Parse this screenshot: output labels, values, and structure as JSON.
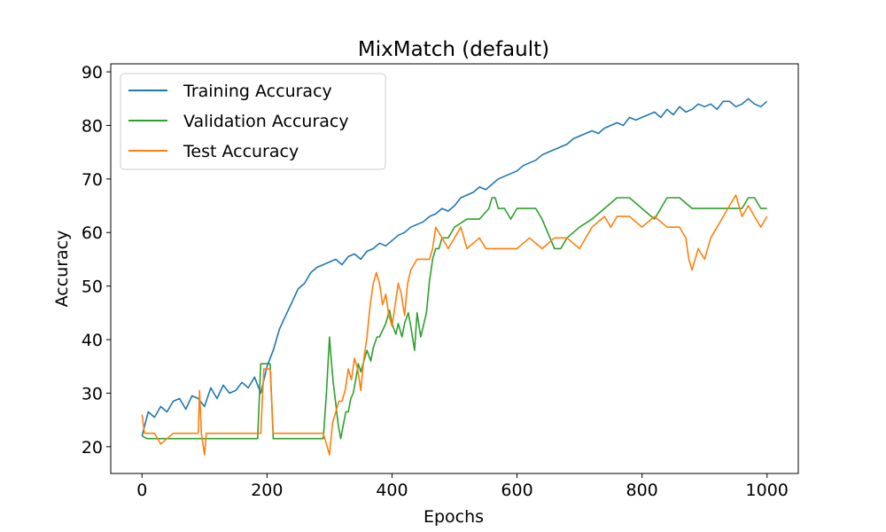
{
  "chart_data": {
    "type": "line",
    "title": "MixMatch (default)",
    "xlabel": "Epochs",
    "ylabel": "Accuracy",
    "xlim": [
      -50,
      1050
    ],
    "ylim": [
      15,
      91.5
    ],
    "xticks": [
      0,
      200,
      400,
      600,
      800,
      1000
    ],
    "yticks": [
      20,
      30,
      40,
      50,
      60,
      70,
      80,
      90
    ],
    "grid": false,
    "legend_position": "upper-left",
    "series": [
      {
        "name": "Training Accuracy",
        "color": "#1f77b4",
        "x": [
          0,
          10,
          20,
          30,
          40,
          50,
          60,
          70,
          80,
          90,
          100,
          110,
          120,
          130,
          140,
          150,
          160,
          170,
          180,
          190,
          200,
          210,
          220,
          230,
          240,
          250,
          260,
          270,
          280,
          290,
          300,
          310,
          320,
          330,
          340,
          350,
          360,
          370,
          380,
          390,
          400,
          410,
          420,
          430,
          440,
          450,
          460,
          470,
          480,
          490,
          500,
          510,
          520,
          530,
          540,
          550,
          560,
          570,
          580,
          590,
          600,
          610,
          620,
          630,
          640,
          650,
          660,
          670,
          680,
          690,
          700,
          710,
          720,
          730,
          740,
          750,
          760,
          770,
          780,
          790,
          800,
          810,
          820,
          830,
          840,
          850,
          860,
          870,
          880,
          890,
          900,
          910,
          920,
          930,
          940,
          950,
          960,
          970,
          980,
          990,
          1000
        ],
        "y": [
          22.0,
          26.5,
          25.5,
          27.5,
          26.5,
          28.5,
          29.0,
          27.0,
          29.5,
          29.0,
          27.5,
          31.0,
          29.0,
          31.5,
          30.0,
          30.5,
          32.0,
          31.0,
          33.0,
          30.0,
          35.0,
          38.0,
          42.0,
          44.5,
          47.0,
          49.5,
          50.5,
          52.5,
          53.5,
          54.0,
          54.5,
          55.0,
          54.0,
          55.5,
          56.0,
          55.0,
          56.5,
          57.0,
          58.0,
          57.5,
          58.5,
          59.5,
          60.0,
          61.0,
          61.5,
          62.0,
          63.0,
          63.5,
          64.5,
          64.0,
          65.0,
          66.5,
          67.0,
          67.5,
          68.5,
          68.0,
          69.0,
          70.0,
          70.5,
          71.0,
          71.5,
          72.5,
          73.0,
          73.5,
          74.5,
          75.0,
          75.5,
          76.0,
          76.5,
          77.5,
          78.0,
          78.5,
          79.0,
          78.5,
          79.5,
          80.0,
          80.5,
          80.0,
          81.5,
          81.0,
          81.5,
          82.0,
          82.5,
          81.5,
          83.0,
          82.0,
          83.5,
          82.5,
          83.0,
          84.0,
          83.5,
          84.0,
          83.0,
          84.5,
          84.5,
          83.5,
          84.0,
          85.0,
          84.0,
          83.5,
          84.5
        ]
      },
      {
        "name": "Validation Accuracy",
        "color": "#2ca02c",
        "x": [
          0,
          8,
          20,
          60,
          100,
          150,
          185,
          190,
          205,
          210,
          250,
          290,
          295,
          300,
          303,
          306,
          310,
          314,
          318,
          322,
          326,
          330,
          334,
          338,
          342,
          346,
          350,
          355,
          360,
          366,
          370,
          376,
          380,
          386,
          390,
          396,
          400,
          406,
          410,
          416,
          420,
          426,
          430,
          436,
          440,
          446,
          450,
          455,
          460,
          465,
          470,
          475,
          480,
          490,
          500,
          520,
          540,
          555,
          560,
          565,
          570,
          580,
          590,
          600,
          610,
          620,
          630,
          640,
          660,
          670,
          680,
          700,
          720,
          740,
          760,
          780,
          800,
          820,
          830,
          840,
          860,
          880,
          900,
          920,
          940,
          960,
          970,
          980,
          990,
          1000
        ],
        "y": [
          22,
          21.5,
          21.5,
          21.5,
          21.5,
          21.5,
          21.5,
          35.5,
          35.5,
          21.5,
          21.5,
          21.5,
          30.0,
          40.5,
          36.0,
          32.0,
          28.0,
          24.0,
          21.5,
          24.0,
          26.5,
          26.5,
          29.0,
          30.0,
          32.5,
          35.5,
          34.0,
          36.0,
          38.0,
          36.0,
          38.5,
          40.5,
          40.5,
          42.0,
          43.0,
          45.5,
          43.0,
          41.0,
          43.0,
          40.5,
          43.0,
          45.0,
          42.5,
          38.0,
          45.0,
          40.5,
          42.5,
          45.0,
          51.0,
          55.0,
          57.0,
          57.0,
          59.0,
          59.0,
          61.0,
          62.5,
          62.5,
          64.5,
          66.5,
          66.5,
          64.5,
          64.5,
          62.5,
          64.5,
          64.5,
          64.5,
          64.5,
          62.5,
          57.0,
          57.0,
          59.0,
          61.0,
          62.5,
          64.5,
          66.5,
          66.5,
          64.5,
          62.5,
          64.5,
          66.5,
          66.5,
          64.5,
          64.5,
          64.5,
          64.5,
          64.5,
          66.5,
          66.5,
          64.5,
          64.5
        ]
      },
      {
        "name": "Test Accuracy",
        "color": "#ff7f0e",
        "x": [
          0,
          4,
          8,
          20,
          30,
          50,
          60,
          90,
          92,
          95,
          100,
          103,
          110,
          190,
          195,
          200,
          205,
          210,
          250,
          290,
          295,
          300,
          305,
          310,
          315,
          320,
          325,
          330,
          335,
          340,
          345,
          350,
          355,
          360,
          365,
          370,
          375,
          380,
          385,
          390,
          395,
          400,
          405,
          410,
          415,
          420,
          425,
          430,
          440,
          450,
          460,
          465,
          470,
          480,
          490,
          500,
          510,
          520,
          540,
          550,
          580,
          600,
          620,
          640,
          660,
          680,
          700,
          720,
          740,
          750,
          760,
          780,
          800,
          820,
          840,
          860,
          870,
          875,
          880,
          890,
          900,
          910,
          920,
          930,
          940,
          950,
          960,
          970,
          980,
          990,
          1000
        ],
        "y": [
          26,
          22.5,
          22.5,
          22.5,
          20.5,
          22.5,
          22.5,
          22.5,
          30.5,
          22.5,
          18.5,
          22.5,
          22.5,
          22.5,
          34.5,
          34.5,
          34.5,
          22.5,
          22.5,
          22.5,
          20.5,
          18.5,
          24.5,
          26.5,
          28.5,
          28.5,
          30.5,
          34.5,
          32.5,
          36.5,
          34.5,
          30.5,
          36.5,
          40.5,
          46.5,
          50.5,
          52.5,
          50.5,
          46.5,
          48.5,
          44.5,
          42.5,
          46.5,
          50.5,
          48.5,
          44.5,
          50.5,
          53.0,
          55.0,
          55.0,
          55.0,
          57.0,
          61.0,
          59.0,
          57.0,
          59.0,
          61.0,
          57.0,
          59.0,
          57.0,
          57.0,
          57.0,
          59.0,
          57.0,
          59.0,
          59.0,
          57.0,
          61.0,
          63.0,
          61.0,
          63.0,
          63.0,
          61.0,
          63.0,
          61.0,
          61.0,
          59.0,
          55.0,
          53.0,
          57.0,
          55.0,
          59.0,
          61.0,
          63.0,
          65.0,
          67.0,
          63.0,
          65.0,
          63.0,
          61.0,
          63.0
        ]
      }
    ]
  }
}
